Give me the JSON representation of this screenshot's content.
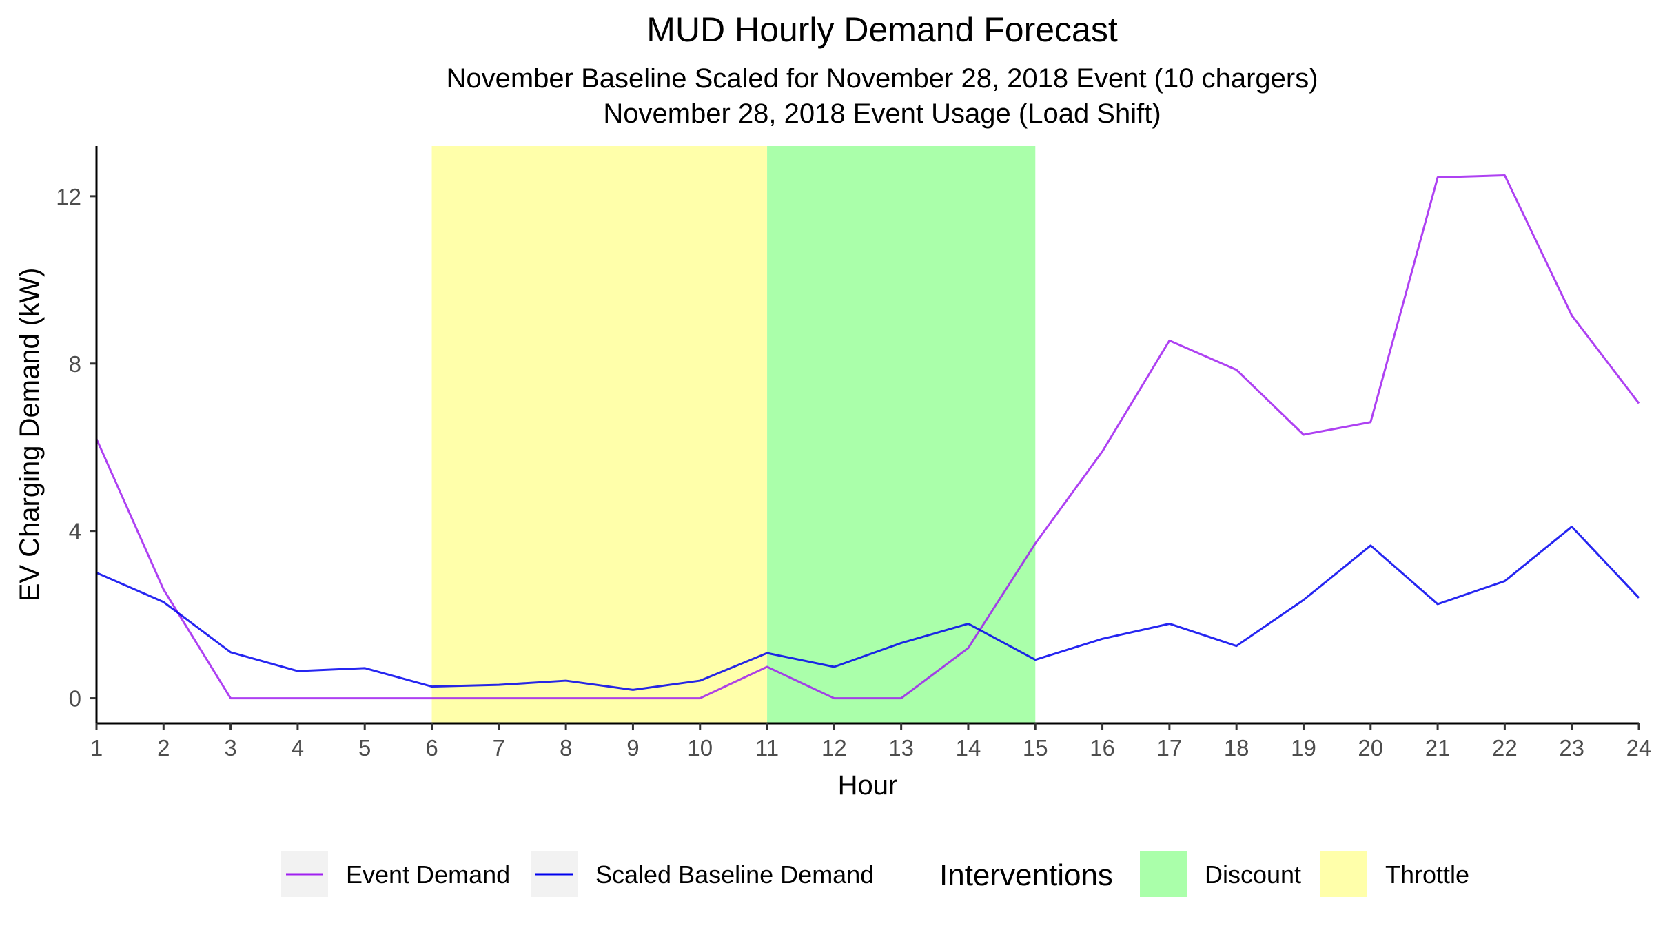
{
  "chart_data": {
    "type": "line",
    "title": "MUD Hourly Demand Forecast",
    "subtitle_lines": [
      "November Baseline Scaled for November 28, 2018 Event (10 chargers)",
      "November 28, 2018 Event Usage (Load Shift)"
    ],
    "xlabel": "Hour",
    "ylabel": "EV Charging Demand (kW)",
    "x": [
      1,
      2,
      3,
      4,
      5,
      6,
      7,
      8,
      9,
      10,
      11,
      12,
      13,
      14,
      15,
      16,
      17,
      18,
      19,
      20,
      21,
      22,
      23,
      24
    ],
    "xlim": [
      1,
      24
    ],
    "ylim": [
      -0.6,
      13.2
    ],
    "yticks": [
      0,
      4,
      8,
      12
    ],
    "grid": false,
    "series": [
      {
        "name": "Event Demand",
        "color": "#a020f0",
        "values": [
          6.2,
          2.6,
          0.0,
          0.0,
          0.0,
          0.0,
          0.0,
          0.0,
          0.0,
          0.0,
          0.75,
          0.0,
          0.0,
          1.2,
          3.7,
          5.9,
          8.55,
          7.85,
          6.3,
          6.6,
          12.45,
          12.5,
          9.15,
          7.05
        ]
      },
      {
        "name": "Scaled Baseline Demand",
        "color": "#0000ee",
        "values": [
          3.0,
          2.3,
          1.1,
          0.65,
          0.72,
          0.28,
          0.32,
          0.42,
          0.2,
          0.42,
          1.08,
          0.75,
          1.32,
          1.78,
          0.92,
          1.42,
          1.78,
          1.25,
          2.35,
          3.65,
          2.25,
          2.8,
          4.1,
          2.4
        ]
      }
    ],
    "interventions": {
      "legend_title": "Interventions",
      "bands": [
        {
          "name": "Throttle",
          "start": 6,
          "end": 11,
          "color": "#ffffaa"
        },
        {
          "name": "Discount",
          "start": 11,
          "end": 15,
          "color": "#aaffaa"
        }
      ],
      "legend_order": [
        "Discount",
        "Throttle"
      ]
    },
    "legend_position": "bottom"
  }
}
